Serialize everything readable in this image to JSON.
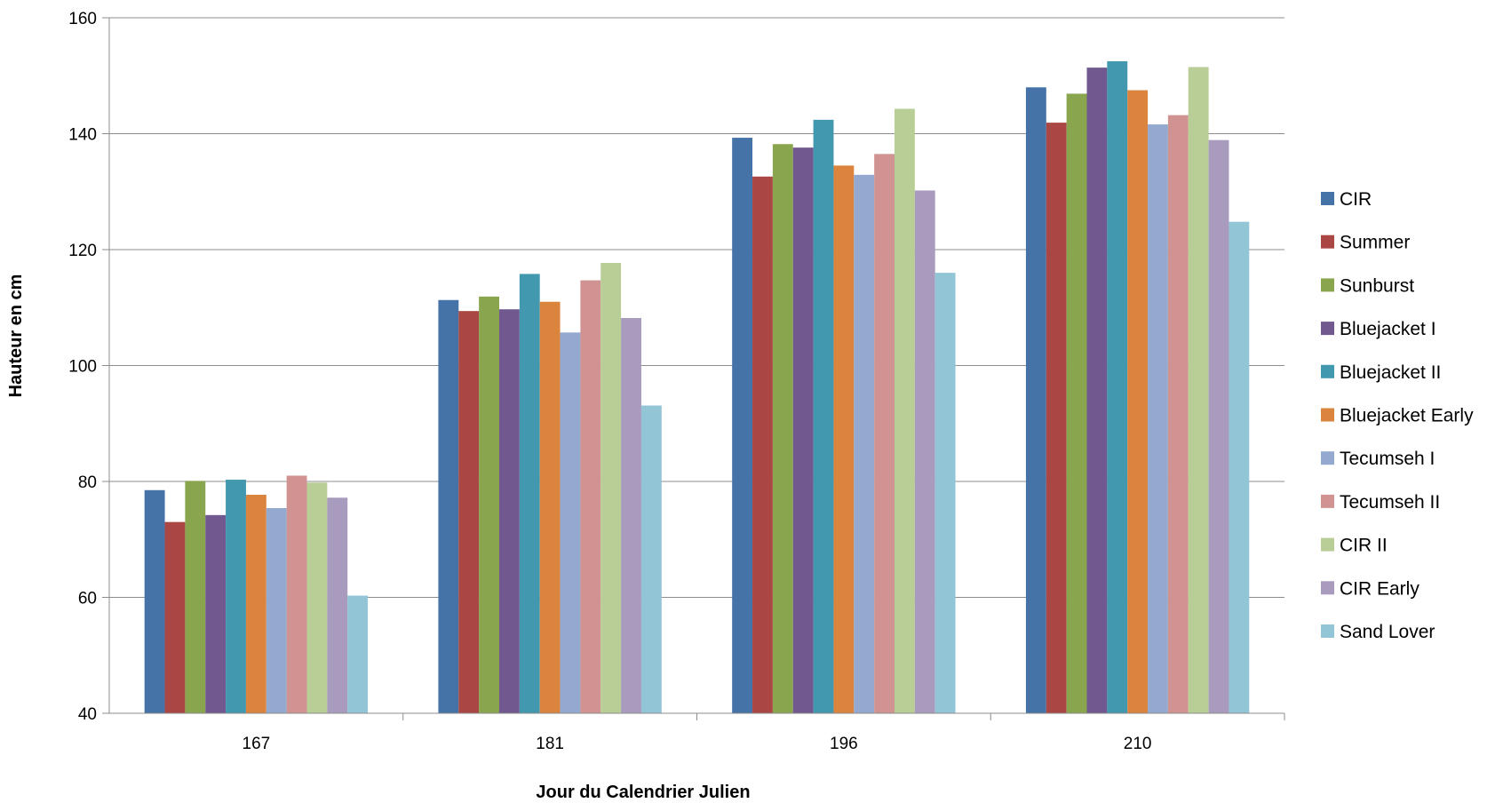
{
  "chart_data": {
    "type": "bar",
    "title": "",
    "xlabel": "Jour du Calendrier Julien",
    "ylabel": "Hauteur  en  cm",
    "categories": [
      "167",
      "181",
      "196",
      "210"
    ],
    "ylim": [
      40,
      160
    ],
    "yticks": [
      40,
      60,
      80,
      100,
      120,
      140,
      160
    ],
    "grid": true,
    "legend_position": "right",
    "series": [
      {
        "name": "CIR",
        "color": "#4572A7",
        "values": [
          78.5,
          111.3,
          139.3,
          148.0
        ]
      },
      {
        "name": "Summer",
        "color": "#AA4643",
        "values": [
          73.0,
          109.4,
          132.6,
          141.9
        ]
      },
      {
        "name": "Sunburst",
        "color": "#89A54E",
        "values": [
          80.1,
          111.9,
          138.2,
          146.9
        ]
      },
      {
        "name": "Bluejacket I",
        "color": "#71588F",
        "values": [
          74.2,
          109.7,
          137.6,
          151.4
        ]
      },
      {
        "name": "Bluejacket II",
        "color": "#4198AF",
        "values": [
          80.3,
          115.8,
          142.4,
          152.5
        ]
      },
      {
        "name": "Bluejacket Early",
        "color": "#DB843D",
        "values": [
          77.7,
          111.0,
          134.5,
          147.5
        ]
      },
      {
        "name": "Tecumseh I",
        "color": "#93A9CF",
        "values": [
          75.4,
          105.7,
          132.9,
          141.6
        ]
      },
      {
        "name": "Tecumseh II",
        "color": "#D19392",
        "values": [
          81.0,
          114.7,
          136.5,
          143.2
        ]
      },
      {
        "name": "CIR II",
        "color": "#B9CD96",
        "values": [
          79.8,
          117.7,
          144.3,
          151.5
        ]
      },
      {
        "name": "CIR Early",
        "color": "#A99BBD",
        "values": [
          77.2,
          108.2,
          130.2,
          138.9
        ]
      },
      {
        "name": "Sand Lover",
        "color": "#92C5D6",
        "values": [
          60.3,
          93.1,
          116.0,
          124.8
        ]
      }
    ]
  }
}
